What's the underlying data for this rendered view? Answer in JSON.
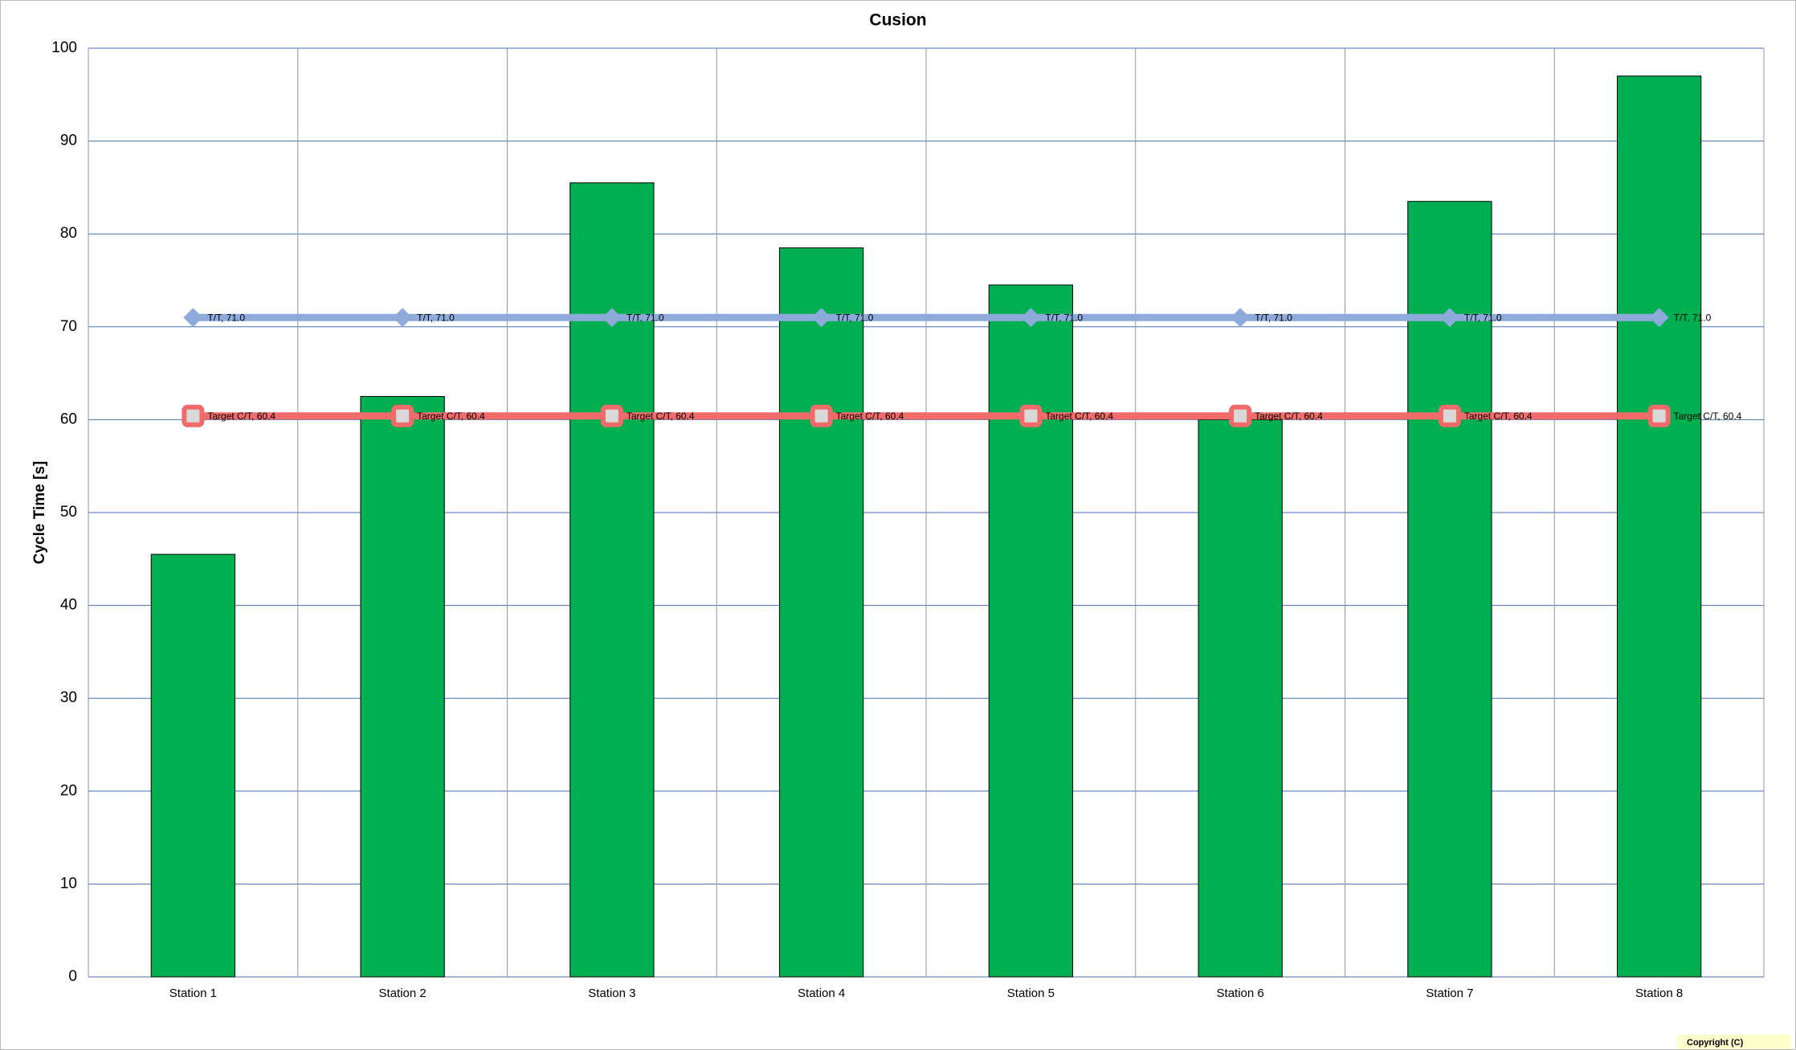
{
  "chart_data": {
    "type": "bar",
    "title": "Cusion",
    "y_label": "Cycle Time [s]",
    "categories": [
      "Station 1",
      "Station 2",
      "Station 3",
      "Station 4",
      "Station 5",
      "Station 6",
      "Station 7",
      "Station 8"
    ],
    "values": [
      45.5,
      62.5,
      85.5,
      78.5,
      74.5,
      60.0,
      83.5,
      97.0
    ],
    "color": "#00b050",
    "series": [
      {
        "name": "T/T",
        "type": "line",
        "marker": "diamond",
        "color": "#8eaadb",
        "values": [
          71.0,
          71.0,
          71.0,
          71.0,
          71.0,
          71.0,
          71.0,
          71.0
        ],
        "value_labels": [
          "T/T, 71.0",
          "T/T, 71.0",
          "T/T, 71.0",
          "T/T, 71.0",
          "T/T, 71.0",
          "T/T, 71.0",
          "T/T, 71.0",
          "T/T, 71.0"
        ]
      },
      {
        "name": "Target C/T",
        "type": "line",
        "marker": "square",
        "color": "#f26b6b",
        "values": [
          60.4,
          60.4,
          60.4,
          60.4,
          60.4,
          60.4,
          60.4,
          60.4
        ],
        "value_labels": [
          "Target C/T, 60.4",
          "Target C/T, 60.4",
          "Target C/T, 60.4",
          "Target C/T, 60.4",
          "Target C/T, 60.4",
          "Target C/T, 60.4",
          "Target C/T, 60.4",
          "Target C/T, 60.4"
        ]
      }
    ],
    "ylim": [
      0,
      100
    ],
    "yticks": [
      0,
      10,
      20,
      30,
      40,
      50,
      60,
      70,
      80,
      90,
      100
    ],
    "grid": true,
    "footer": "Copyright (C)"
  }
}
